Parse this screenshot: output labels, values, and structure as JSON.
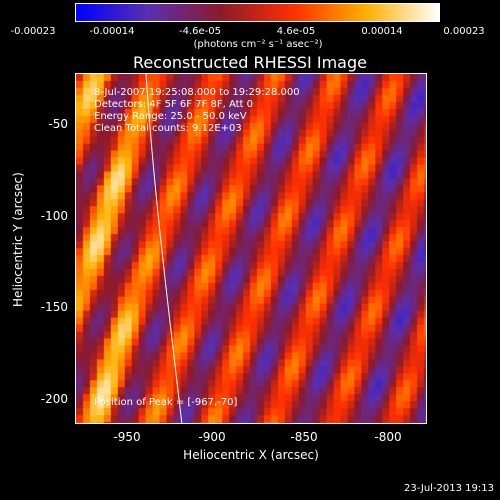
{
  "colorbar": {
    "tick_labels": [
      "-0.00023",
      "-0.00014",
      "-4.6e-05",
      "4.6e-05",
      "0.00014",
      "0.00023"
    ],
    "units": "(photons cm⁻² s⁻¹ asec⁻²)"
  },
  "plot": {
    "title": "Reconstructed RHESSI Image",
    "info_lines": [
      "8-Jul-2007 19:25:08.000 to 19:29:28.000",
      "Detectors: 4F 5F 6F 7F 8F, Att 0",
      "Energy Range: 25.0 - 50.0 keV",
      "Clean    Total counts: 9.12E+03"
    ],
    "peak_label": "Position of Peak = [-967,-70]",
    "xlabel": "Heliocentric X (arcsec)",
    "ylabel": "Heliocentric Y (arcsec)",
    "x_tick_labels": [
      "-950",
      "-900",
      "-850",
      "-800"
    ],
    "y_tick_labels": [
      "-50",
      "-100",
      "-150",
      "-200"
    ]
  },
  "footer": {
    "timestamp": "23-Jul-2013 19:13"
  },
  "colors": {
    "background": "#000000",
    "axis": "#ffffff",
    "colormap": [
      "#0000ff",
      "#5a2fb0",
      "#8c1a2a",
      "#ff3000",
      "#ffb000",
      "#ffffff"
    ]
  }
}
